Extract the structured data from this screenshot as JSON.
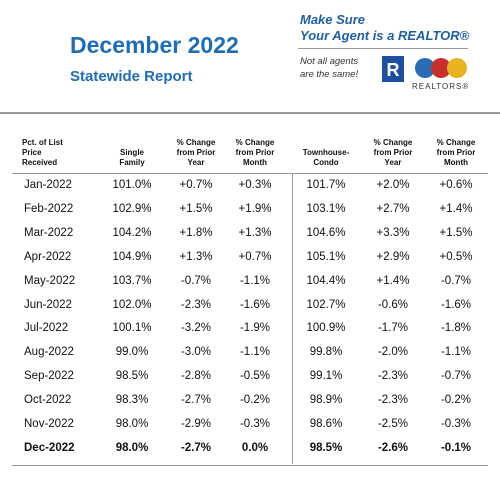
{
  "header": {
    "title": "December 2022",
    "subtitle": "Statewide Report"
  },
  "promo": {
    "line1": "Make Sure",
    "line2": "Your Agent is a REALTOR®",
    "tagline": [
      "Not all agents",
      "are the same!"
    ],
    "logo_text": "REALTORS®"
  },
  "table": {
    "columns": [
      [
        "Pct. of List",
        "Price",
        "Received"
      ],
      [
        "Single",
        "Family"
      ],
      [
        "% Change",
        "from Prior",
        "Year"
      ],
      [
        "% Change",
        "from Prior",
        "Month"
      ],
      [
        "Townhouse-",
        "Condo"
      ],
      [
        "% Change",
        "from Prior",
        "Year"
      ],
      [
        "% Change",
        "from Prior",
        "Month"
      ]
    ],
    "rows": [
      [
        "Jan-2022",
        "101.0%",
        "+0.7%",
        "+0.3%",
        "101.7%",
        "+2.0%",
        "+0.6%"
      ],
      [
        "Feb-2022",
        "102.9%",
        "+1.5%",
        "+1.9%",
        "103.1%",
        "+2.7%",
        "+1.4%"
      ],
      [
        "Mar-2022",
        "104.2%",
        "+1.8%",
        "+1.3%",
        "104.6%",
        "+3.3%",
        "+1.5%"
      ],
      [
        "Apr-2022",
        "104.9%",
        "+1.3%",
        "+0.7%",
        "105.1%",
        "+2.9%",
        "+0.5%"
      ],
      [
        "May-2022",
        "103.7%",
        "-0.7%",
        "-1.1%",
        "104.4%",
        "+1.4%",
        "-0.7%"
      ],
      [
        "Jun-2022",
        "102.0%",
        "-2.3%",
        "-1.6%",
        "102.7%",
        "-0.6%",
        "-1.6%"
      ],
      [
        "Jul-2022",
        "100.1%",
        "-3.2%",
        "-1.9%",
        "100.9%",
        "-1.7%",
        "-1.8%"
      ],
      [
        "Aug-2022",
        "99.0%",
        "-3.0%",
        "-1.1%",
        "99.8%",
        "-2.0%",
        "-1.1%"
      ],
      [
        "Sep-2022",
        "98.5%",
        "-2.8%",
        "-0.5%",
        "99.1%",
        "-2.3%",
        "-0.7%"
      ],
      [
        "Oct-2022",
        "98.3%",
        "-2.7%",
        "-0.2%",
        "98.9%",
        "-2.3%",
        "-0.2%"
      ],
      [
        "Nov-2022",
        "98.0%",
        "-2.9%",
        "-0.3%",
        "98.6%",
        "-2.5%",
        "-0.3%"
      ],
      [
        "Dec-2022",
        "98.0%",
        "-2.7%",
        "0.0%",
        "98.5%",
        "-2.6%",
        "-0.1%"
      ]
    ]
  }
}
